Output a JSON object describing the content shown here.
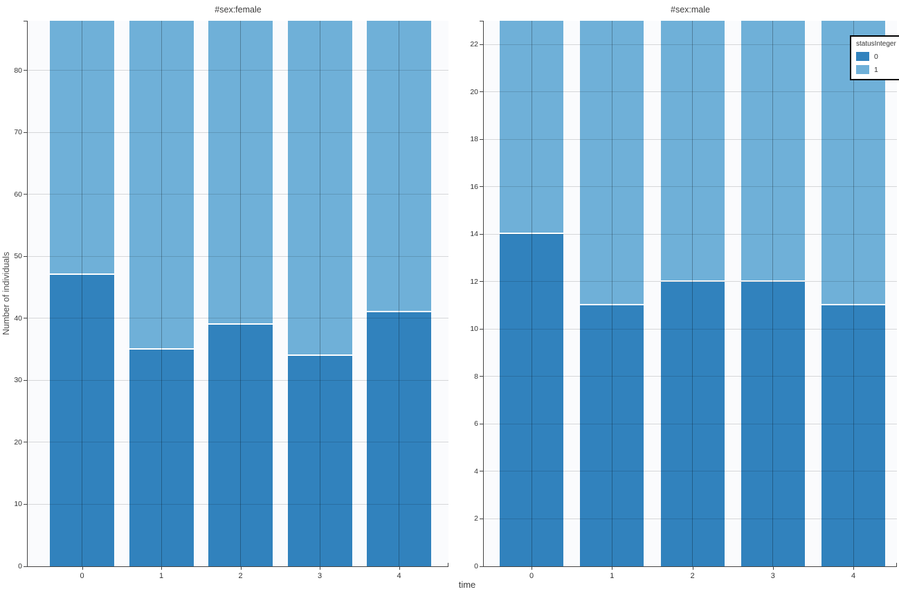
{
  "figure": {
    "x_axis_label": "time",
    "y_axis_label": "Number of individuals",
    "legend": {
      "title": "statusInteger",
      "entries": [
        {
          "label": "0",
          "color": "#3182bd"
        },
        {
          "label": "1",
          "color": "#6fb0d8"
        }
      ]
    },
    "colors": {
      "series0": "#3182bd",
      "series1": "#6fb0d8",
      "plot_background": "#fafbfd",
      "axis": "#444444"
    }
  },
  "chart_data": [
    {
      "type": "bar",
      "stacked": true,
      "title": "#sex:female",
      "xlabel": "time",
      "ylabel": "Number of individuals",
      "categories": [
        "0",
        "1",
        "2",
        "3",
        "4"
      ],
      "series": [
        {
          "name": "0",
          "color": "#3182bd",
          "values": [
            47,
            35,
            39,
            34,
            41
          ]
        },
        {
          "name": "1",
          "color": "#6fb0d8",
          "values": [
            41,
            53,
            49,
            54,
            47
          ]
        }
      ],
      "totals": [
        88,
        88,
        88,
        88,
        88
      ],
      "ylim": [
        0,
        88
      ],
      "yticks": [
        0,
        10,
        20,
        30,
        40,
        50,
        60,
        70,
        80
      ],
      "grid": true,
      "legend_position": "none"
    },
    {
      "type": "bar",
      "stacked": true,
      "title": "#sex:male",
      "xlabel": "time",
      "ylabel": "",
      "categories": [
        "0",
        "1",
        "2",
        "3",
        "4"
      ],
      "series": [
        {
          "name": "0",
          "color": "#3182bd",
          "values": [
            14,
            11,
            12,
            12,
            11
          ]
        },
        {
          "name": "1",
          "color": "#6fb0d8",
          "values": [
            9,
            12,
            11,
            11,
            12
          ]
        }
      ],
      "totals": [
        23,
        23,
        23,
        23,
        23
      ],
      "ylim": [
        0,
        23
      ],
      "yticks": [
        0,
        2,
        4,
        6,
        8,
        10,
        12,
        14,
        16,
        18,
        20,
        22
      ],
      "grid": true,
      "legend_position": "top-right"
    }
  ]
}
